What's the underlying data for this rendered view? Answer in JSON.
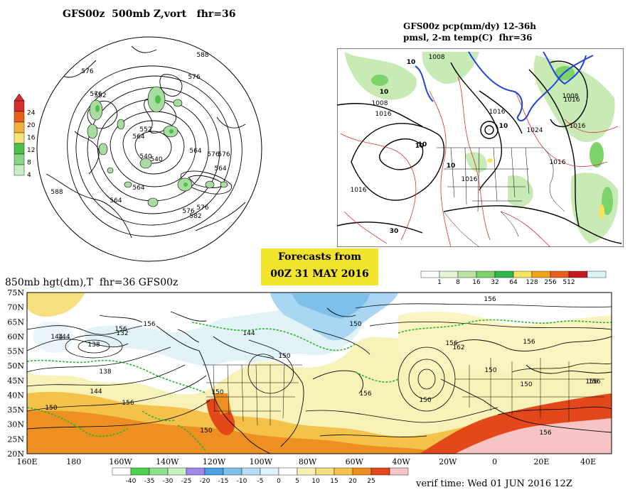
{
  "panels": {
    "polar": {
      "title": "GFS00z  500mb Z,vort   fhr=36",
      "colorbar_ticks": [
        "24",
        "20",
        "16",
        "12",
        "8",
        "4"
      ],
      "colorbar_colors": [
        "#ffffff",
        "#c6eec6",
        "#88d688",
        "#4cbf4c",
        "#f5e37a",
        "#f3b23d",
        "#e8601c",
        "#d43030"
      ],
      "contour_labels": [
        "588",
        "576",
        "576",
        "576",
        "552",
        "564",
        "540",
        "540",
        "552",
        "576",
        "576",
        "564",
        "564",
        "576",
        "576",
        "582",
        "564",
        "564",
        "588"
      ],
      "icon": "polar-stereographic-map-icon"
    },
    "na": {
      "title_line1": "GFS00z pcp(mm/dy) 12-36h",
      "title_line2": "pmsl, 2-m temp(C)  fhr=36",
      "isobar_labels": [
        "1008",
        "1008",
        "1016",
        "1016",
        "1016",
        "1024",
        "1016",
        "1016",
        "1016",
        "1008",
        "1016"
      ],
      "temp_labels": [
        "10",
        "10",
        "10",
        "10",
        "10",
        "10",
        "30"
      ],
      "colorbar_ticks": [
        "1",
        "8",
        "16",
        "32",
        "64",
        "128",
        "256",
        "512"
      ],
      "colorbar_colors": [
        "#ffffff",
        "#e3f6d6",
        "#b8e6a2",
        "#7bd36a",
        "#2fb84b",
        "#f6e35e",
        "#f3a31c",
        "#e8601c",
        "#c41d1d",
        "#d9f5f9"
      ],
      "icon": "north-america-map-icon"
    },
    "banner": {
      "line1": "Forecasts from",
      "line2": "00Z 31 MAY 2016"
    },
    "world": {
      "title": "850mb hgt(dm),T  fhr=36 GFS00z",
      "lat_labels": [
        "75N",
        "70N",
        "65N",
        "60N",
        "55N",
        "50N",
        "45N",
        "40N",
        "35N",
        "30N",
        "25N",
        "20N"
      ],
      "lon_labels": [
        "160E",
        "180",
        "160W",
        "140W",
        "120W",
        "100W",
        "80W",
        "60W",
        "40W",
        "20W",
        "0",
        "20E",
        "40E"
      ],
      "height_labels": [
        "156",
        "144",
        "156",
        "138",
        "132",
        "144",
        "138",
        "144",
        "150",
        "156",
        "150",
        "150",
        "150",
        "144",
        "150",
        "156",
        "156",
        "162",
        "150",
        "156",
        "156",
        "156",
        "156",
        "150",
        "156",
        "150"
      ],
      "temp_colorbar_ticks": [
        "-40",
        "-35",
        "-30",
        "-25",
        "-20",
        "-15",
        "-10",
        "-5",
        "0",
        "5",
        "10",
        "15",
        "20",
        "25"
      ],
      "temp_colorbar_colors": [
        "#ffffff",
        "#4fcf4f",
        "#8fe08f",
        "#c8efc0",
        "#a088e8",
        "#4aa0e0",
        "#7ec0ea",
        "#b6dcf6",
        "#e0f3fa",
        "#ffffff",
        "#f9f1b4",
        "#f6df7e",
        "#f4c24b",
        "#ee8f21",
        "#e3481a",
        "#f6c4c4"
      ],
      "verif_time": "verif time: Wed 01 JUN 2016 12Z",
      "icon": "world-850mb-map-icon"
    }
  }
}
